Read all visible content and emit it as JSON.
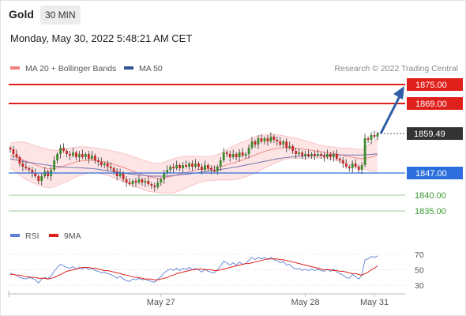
{
  "header": {
    "title": "Gold",
    "timeframe": "30 MIN",
    "datetime": "Monday, May 30, 2022 5:48:21 AM CET"
  },
  "colors": {
    "bollinger": "#f08080",
    "bollinger_band_fill": "#fde2e2",
    "ma50": "#2f5597",
    "resistance": "#e0201b",
    "support": "#2c6fdc",
    "target": "#3a9a2e",
    "current": "#333333",
    "candle_up": "#3c8a2e",
    "candle_down": "#c62828",
    "rsi": "#5b7fd6",
    "rsi_ma": "#e0201b",
    "arrow": "#2f5fa8"
  },
  "chart_data": [
    {
      "type": "candlestick",
      "legend": [
        {
          "name": "MA 20 + Bollinger Bands",
          "color": "#f08080"
        },
        {
          "name": "MA 50",
          "color": "#2f5597"
        }
      ],
      "source": "Research © 2022 Trading Central",
      "ylim": [
        1830,
        1880
      ],
      "x_ticks": [
        {
          "label": "May 27",
          "index": 48
        },
        {
          "label": "May 28",
          "index": 94
        },
        {
          "label": "May 31",
          "index": 116
        }
      ],
      "last_price": 1859.49,
      "levels": [
        {
          "label": "1875.00",
          "value": 1875.0,
          "kind": "resistance"
        },
        {
          "label": "1869.00",
          "value": 1869.0,
          "kind": "resistance"
        },
        {
          "label": "1859.49",
          "value": 1859.49,
          "kind": "current"
        },
        {
          "label": "1847.00",
          "value": 1847.0,
          "kind": "support"
        },
        {
          "label": "1840.00",
          "value": 1840.0,
          "kind": "target"
        },
        {
          "label": "1835.00",
          "value": 1835.0,
          "kind": "target"
        }
      ],
      "closes": [
        1854.5,
        1853.0,
        1852.0,
        1850.0,
        1849.0,
        1848.5,
        1848.0,
        1847.0,
        1846.0,
        1844.5,
        1846.0,
        1847.5,
        1846.0,
        1848.0,
        1851.0,
        1853.0,
        1855.0,
        1854.0,
        1853.0,
        1852.5,
        1853.5,
        1852.0,
        1853.0,
        1852.0,
        1853.0,
        1851.5,
        1852.5,
        1851.0,
        1850.5,
        1849.5,
        1850.0,
        1849.0,
        1848.5,
        1847.5,
        1846.0,
        1847.0,
        1845.0,
        1844.0,
        1843.5,
        1844.5,
        1844.0,
        1845.0,
        1844.0,
        1844.5,
        1843.5,
        1843.0,
        1842.5,
        1844.0,
        1845.0,
        1847.0,
        1848.0,
        1849.0,
        1848.5,
        1849.5,
        1848.5,
        1849.5,
        1849.0,
        1850.0,
        1849.0,
        1850.0,
        1849.0,
        1848.0,
        1849.5,
        1848.5,
        1848.0,
        1847.5,
        1849.0,
        1851.0,
        1853.5,
        1853.0,
        1852.0,
        1853.0,
        1852.0,
        1853.5,
        1852.5,
        1853.0,
        1855.0,
        1857.0,
        1856.0,
        1858.0,
        1857.0,
        1858.0,
        1857.0,
        1858.5,
        1857.5,
        1857.0,
        1856.0,
        1857.0,
        1855.0,
        1855.5,
        1854.0,
        1853.0,
        1853.5,
        1852.5,
        1853.0,
        1852.5,
        1853.0,
        1852.5,
        1853.0,
        1852.5,
        1852.0,
        1853.0,
        1852.0,
        1853.0,
        1851.5,
        1851.0,
        1850.0,
        1849.0,
        1848.5,
        1850.0,
        1849.0,
        1848.0,
        1849.5,
        1858.0,
        1857.5,
        1859.0,
        1858.5,
        1859.5
      ],
      "ma20": [
        1852.5,
        1852.3,
        1852.0,
        1851.6,
        1851.2,
        1850.8,
        1850.4,
        1850.0,
        1849.6,
        1849.2,
        1848.9,
        1848.6,
        1848.4,
        1848.3,
        1848.4,
        1848.6,
        1848.9,
        1849.2,
        1849.5,
        1849.9,
        1850.2,
        1850.5,
        1850.7,
        1850.9,
        1851.0,
        1851.1,
        1851.1,
        1851.0,
        1850.9,
        1850.7,
        1850.5,
        1850.3,
        1850.0,
        1849.7,
        1849.4,
        1849.1,
        1848.8,
        1848.4,
        1848.0,
        1847.6,
        1847.2,
        1846.9,
        1846.5,
        1846.2,
        1845.9,
        1845.7,
        1845.5,
        1845.4,
        1845.4,
        1845.5,
        1845.7,
        1845.9,
        1846.1,
        1846.4,
        1846.7,
        1847.0,
        1847.2,
        1847.5,
        1847.7,
        1847.9,
        1848.1,
        1848.2,
        1848.3,
        1848.4,
        1848.5,
        1848.6,
        1848.8,
        1849.0,
        1849.3,
        1849.6,
        1849.9,
        1850.2,
        1850.5,
        1850.8,
        1851.1,
        1851.5,
        1851.9,
        1852.3,
        1852.7,
        1853.1,
        1853.5,
        1853.8,
        1854.1,
        1854.4,
        1854.6,
        1854.8,
        1854.9,
        1855.0,
        1855.0,
        1855.0,
        1854.9,
        1854.8,
        1854.7,
        1854.6,
        1854.4,
        1854.3,
        1854.2,
        1854.0,
        1853.9,
        1853.8,
        1853.6,
        1853.5,
        1853.3,
        1853.2,
        1853.0,
        1852.8,
        1852.6,
        1852.4,
        1852.2,
        1852.0,
        1851.8,
        1851.6,
        1851.5,
        1851.6,
        1851.8,
        1852.1,
        1852.4,
        1852.7
      ],
      "bb_upper": [
        1856.5,
        1856.6,
        1856.8,
        1856.9,
        1856.8,
        1856.6,
        1856.3,
        1856.0,
        1855.6,
        1855.3,
        1855.0,
        1854.8,
        1854.5,
        1854.3,
        1854.2,
        1854.2,
        1854.3,
        1854.5,
        1854.8,
        1855.0,
        1855.1,
        1855.2,
        1855.3,
        1855.3,
        1855.3,
        1855.2,
        1855.1,
        1855.0,
        1854.8,
        1854.7,
        1854.5,
        1854.3,
        1854.1,
        1853.9,
        1853.7,
        1853.5,
        1853.2,
        1852.9,
        1852.6,
        1852.2,
        1851.9,
        1851.5,
        1851.2,
        1850.9,
        1850.6,
        1850.3,
        1850.1,
        1850.0,
        1850.1,
        1850.4,
        1850.8,
        1851.2,
        1851.5,
        1851.8,
        1852.0,
        1852.2,
        1852.2,
        1852.3,
        1852.3,
        1852.3,
        1852.2,
        1852.2,
        1852.2,
        1852.2,
        1852.3,
        1852.5,
        1852.8,
        1853.2,
        1853.8,
        1854.4,
        1855.0,
        1855.5,
        1856.0,
        1856.4,
        1856.8,
        1857.2,
        1857.6,
        1858.0,
        1858.4,
        1858.7,
        1858.9,
        1859.1,
        1859.2,
        1859.3,
        1859.3,
        1859.2,
        1859.0,
        1858.8,
        1858.6,
        1858.4,
        1858.2,
        1858.0,
        1857.8,
        1857.5,
        1857.2,
        1856.9,
        1856.6,
        1856.3,
        1856.0,
        1855.8,
        1855.6,
        1855.4,
        1855.3,
        1855.2,
        1855.1,
        1855.0,
        1854.9,
        1854.8,
        1854.8,
        1854.7,
        1854.6,
        1854.5,
        1854.5,
        1855.0,
        1855.8,
        1856.6,
        1857.3,
        1858.0
      ],
      "bb_lower": [
        1848.5,
        1848.0,
        1847.2,
        1846.3,
        1845.6,
        1845.0,
        1844.5,
        1844.0,
        1843.6,
        1843.1,
        1842.8,
        1842.4,
        1842.3,
        1842.3,
        1842.6,
        1843.0,
        1843.5,
        1843.9,
        1844.2,
        1844.8,
        1845.3,
        1845.8,
        1846.1,
        1846.5,
        1846.7,
        1847.0,
        1847.1,
        1847.0,
        1847.0,
        1846.7,
        1846.5,
        1846.3,
        1845.9,
        1845.5,
        1845.1,
        1844.7,
        1844.4,
        1843.9,
        1843.4,
        1843.0,
        1842.5,
        1842.3,
        1841.8,
        1841.5,
        1841.2,
        1841.1,
        1840.9,
        1840.8,
        1840.7,
        1840.6,
        1840.6,
        1840.6,
        1840.7,
        1841.0,
        1841.4,
        1841.8,
        1842.2,
        1842.7,
        1843.1,
        1843.5,
        1844.0,
        1844.2,
        1844.4,
        1844.6,
        1844.7,
        1844.7,
        1844.8,
        1844.8,
        1844.8,
        1844.8,
        1844.8,
        1844.9,
        1845.0,
        1845.2,
        1845.4,
        1845.8,
        1846.2,
        1846.6,
        1847.0,
        1847.5,
        1848.1,
        1848.5,
        1849.0,
        1849.5,
        1849.9,
        1850.4,
        1850.8,
        1851.2,
        1851.4,
        1851.6,
        1851.6,
        1851.6,
        1851.6,
        1851.7,
        1851.6,
        1851.7,
        1851.8,
        1851.7,
        1851.8,
        1851.8,
        1851.6,
        1851.6,
        1851.3,
        1851.2,
        1850.9,
        1850.6,
        1850.3,
        1850.0,
        1849.6,
        1849.3,
        1849.0,
        1848.7,
        1848.5,
        1848.2,
        1847.8,
        1847.6,
        1847.5,
        1847.4
      ],
      "ma50": [
        1851.5,
        1851.3,
        1851.1,
        1850.9,
        1850.7,
        1850.5,
        1850.4,
        1850.2,
        1850.1,
        1849.9,
        1849.8,
        1849.6,
        1849.5,
        1849.3,
        1849.2,
        1849.1,
        1849.0,
        1848.9,
        1848.8,
        1848.8,
        1848.7,
        1848.7,
        1848.6,
        1848.6,
        1848.5,
        1848.5,
        1848.4,
        1848.3,
        1848.2,
        1848.0,
        1847.9,
        1847.7,
        1847.6,
        1847.4,
        1847.3,
        1847.1,
        1847.0,
        1846.9,
        1846.7,
        1846.6,
        1846.5,
        1846.4,
        1846.3,
        1846.2,
        1846.1,
        1846.0,
        1846.0,
        1846.0,
        1846.0,
        1846.0,
        1846.0,
        1846.1,
        1846.2,
        1846.3,
        1846.4,
        1846.5,
        1846.6,
        1846.7,
        1846.9,
        1847.0,
        1847.1,
        1847.3,
        1847.4,
        1847.6,
        1847.7,
        1847.8,
        1848.0,
        1848.1,
        1848.3,
        1848.4,
        1848.6,
        1848.8,
        1848.9,
        1849.1,
        1849.3,
        1849.5,
        1849.7,
        1849.9,
        1850.1,
        1850.3,
        1850.5,
        1850.7,
        1850.9,
        1851.1,
        1851.3,
        1851.5,
        1851.6,
        1851.8,
        1851.9,
        1852.0,
        1852.1,
        1852.2,
        1852.3,
        1852.3,
        1852.4,
        1852.4,
        1852.5,
        1852.5,
        1852.6,
        1852.6,
        1852.7,
        1852.7,
        1852.7,
        1852.7,
        1852.7,
        1852.7,
        1852.7,
        1852.7,
        1852.7,
        1852.7,
        1852.7,
        1852.7,
        1852.7,
        1852.8,
        1852.8,
        1852.9,
        1853.0,
        1853.0
      ]
    },
    {
      "type": "line",
      "legend": [
        {
          "name": "RSI",
          "color": "#5b7fd6"
        },
        {
          "name": "9MA",
          "color": "#e0201b"
        }
      ],
      "ylim": [
        25,
        78
      ],
      "y_ticks": [
        70,
        50,
        30
      ],
      "series": [
        {
          "name": "RSI",
          "values": [
            46,
            44,
            43,
            40,
            39,
            38,
            40,
            39,
            37,
            33,
            38,
            40,
            38,
            42,
            48,
            53,
            57,
            55,
            53,
            52,
            54,
            51,
            53,
            51,
            53,
            50,
            52,
            49,
            48,
            46,
            47,
            45,
            44,
            42,
            39,
            42,
            38,
            36,
            35,
            38,
            37,
            39,
            37,
            38,
            36,
            35,
            34,
            38,
            41,
            46,
            49,
            51,
            49,
            52,
            49,
            52,
            50,
            53,
            50,
            52,
            50,
            47,
            51,
            48,
            47,
            46,
            50,
            55,
            61,
            59,
            56,
            59,
            56,
            60,
            57,
            58,
            62,
            66,
            63,
            66,
            64,
            66,
            63,
            66,
            63,
            62,
            59,
            61,
            56,
            57,
            53,
            51,
            52,
            49,
            51,
            49,
            51,
            49,
            51,
            49,
            48,
            51,
            48,
            51,
            47,
            45,
            43,
            40,
            39,
            44,
            41,
            38,
            43,
            63,
            64,
            67,
            66,
            68
          ]
        },
        {
          "name": "9MA",
          "values": [
            44,
            44,
            43,
            43,
            42,
            41,
            41,
            40,
            40,
            39,
            39,
            39,
            38,
            39,
            40,
            42,
            44,
            46,
            48,
            49,
            50,
            51,
            52,
            53,
            53,
            53,
            52,
            52,
            51,
            50,
            49,
            49,
            48,
            47,
            46,
            45,
            44,
            43,
            42,
            41,
            40,
            40,
            39,
            38,
            38,
            38,
            37,
            37,
            38,
            39,
            40,
            42,
            43,
            45,
            46,
            47,
            48,
            49,
            50,
            50,
            51,
            51,
            50,
            50,
            50,
            49,
            49,
            50,
            51,
            52,
            53,
            54,
            55,
            56,
            57,
            58,
            58,
            59,
            60,
            61,
            62,
            63,
            64,
            64,
            64,
            64,
            63,
            63,
            62,
            61,
            60,
            59,
            58,
            57,
            56,
            55,
            54,
            53,
            52,
            51,
            50,
            50,
            50,
            49,
            49,
            48,
            48,
            47,
            46,
            45,
            45,
            44,
            43,
            45,
            47,
            50,
            52,
            55
          ]
        }
      ]
    }
  ]
}
